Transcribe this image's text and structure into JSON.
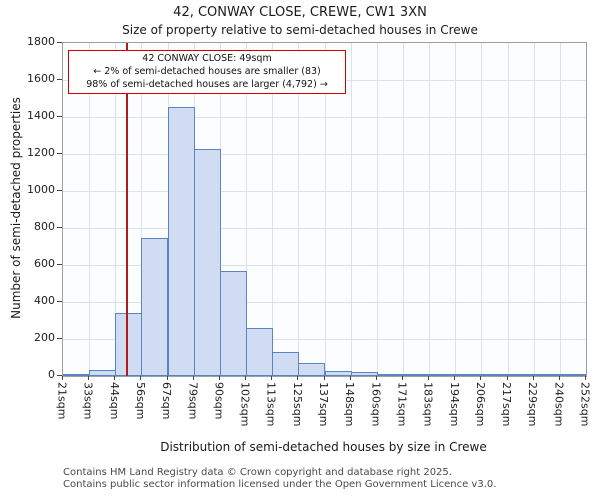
{
  "title": "42, CONWAY CLOSE, CREWE, CW1 3XN",
  "subtitle": "Size of property relative to semi-detached houses in Crewe",
  "chart_data": {
    "type": "bar",
    "title": "42, CONWAY CLOSE, CREWE, CW1 3XN",
    "xlabel": "Distribution of semi-detached houses by size in Crewe",
    "ylabel": "Number of semi-detached properties",
    "ylim": [
      0,
      1800
    ],
    "ytick_step": 200,
    "grid": true,
    "categories": [
      "21sqm",
      "33sqm",
      "44sqm",
      "56sqm",
      "67sqm",
      "79sqm",
      "90sqm",
      "102sqm",
      "113sqm",
      "125sqm",
      "137sqm",
      "148sqm",
      "160sqm",
      "171sqm",
      "183sqm",
      "194sqm",
      "206sqm",
      "217sqm",
      "229sqm",
      "240sqm",
      "252sqm"
    ],
    "values": [
      10,
      35,
      340,
      745,
      1455,
      1225,
      570,
      260,
      130,
      70,
      30,
      20,
      12,
      8,
      5,
      4,
      4,
      6,
      3,
      8
    ],
    "marker": {
      "sqm": 49,
      "label": "49sqm"
    },
    "annotation": {
      "line1": "42 CONWAY CLOSE: 49sqm",
      "line2": "← 2% of semi-detached houses are smaller (83)",
      "line3": "98% of semi-detached houses are larger (4,792) →"
    },
    "colors": {
      "bar_fill": "#cfdcf1",
      "bar_edge": "#5b84c4",
      "marker_line": "#b01c1c",
      "grid": "#dce1ec",
      "annotation_border": "#cc0000"
    }
  },
  "footer": {
    "line1": "Contains HM Land Registry data © Crown copyright and database right 2025.",
    "line2": "Contains public sector information licensed under the Open Government Licence v3.0."
  }
}
